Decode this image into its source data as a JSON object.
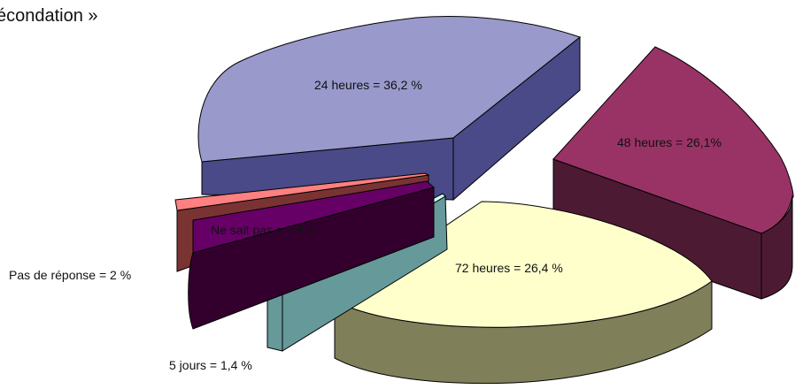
{
  "header": {
    "title_fragment": "écondation »"
  },
  "chart_data": {
    "type": "pie",
    "style": "3d-exploded",
    "slices": [
      {
        "label": "24 heures = 36,2 %",
        "category": "24 heures",
        "value": 36.2,
        "color": "#9999CC"
      },
      {
        "label": "48 heures = 26,1%",
        "category": "48 heures",
        "value": 26.1,
        "color": "#993366"
      },
      {
        "label": "72 heures = 26,4 %",
        "category": "72 heures",
        "value": 26.4,
        "color": "#FFFFCC"
      },
      {
        "label": "5 jours = 1,4 %",
        "category": "5 jours",
        "value": 1.4,
        "color": "#CCFFFF"
      },
      {
        "label": "Ne sait pas = 7,8 %",
        "category": "Ne sait pas",
        "value": 7.8,
        "color": "#660066"
      },
      {
        "label": "Pas de réponse = 2 %",
        "category": "Pas de réponse",
        "value": 2.0,
        "color": "#FF8080"
      }
    ]
  }
}
